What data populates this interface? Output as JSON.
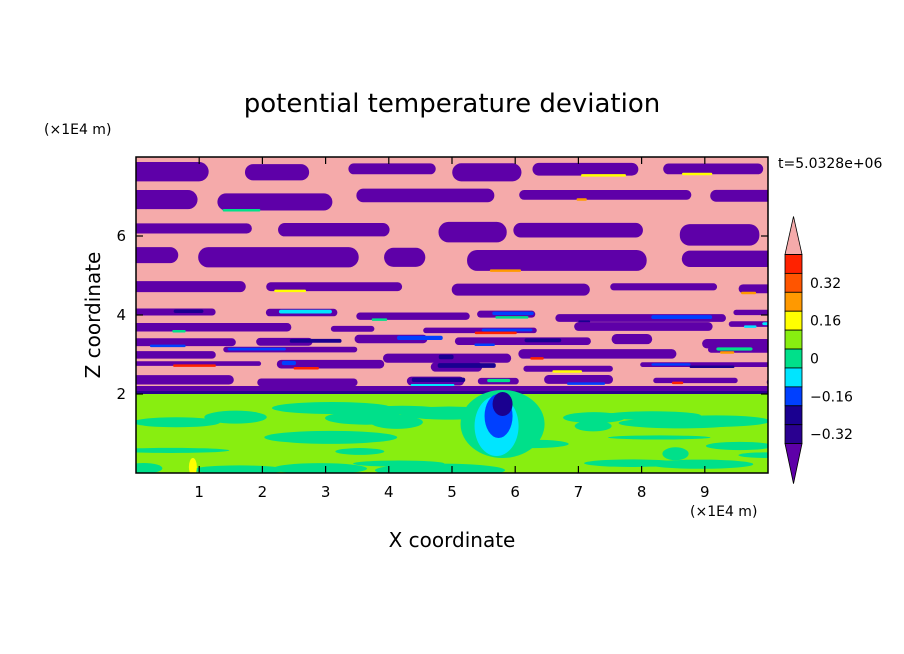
{
  "chart_data": {
    "type": "heatmap",
    "title": "potential temperature deviation",
    "xlabel": "X coordinate",
    "ylabel": "Z coordinate",
    "x_unit": "(×1E4 m)",
    "y_unit": "(×1E4 m)",
    "time_label": "t=5.0328e+06",
    "xlim": [
      0,
      10
    ],
    "ylim": [
      0,
      8
    ],
    "x_ticks": [
      "1",
      "2",
      "3",
      "4",
      "5",
      "6",
      "7",
      "8",
      "9"
    ],
    "y_ticks": [
      "2",
      "4",
      "6"
    ],
    "x_tick_values": [
      1,
      2,
      3,
      4,
      5,
      6,
      7,
      8,
      9
    ],
    "y_tick_values": [
      2,
      4,
      6
    ],
    "colorbar": {
      "levels": [
        -0.48,
        -0.4,
        -0.32,
        -0.24,
        -0.16,
        -0.08,
        0,
        0.08,
        0.16,
        0.24,
        0.32,
        0.4,
        0.48
      ],
      "colors": [
        "#5e00a8",
        "#1a0090",
        "#0040ff",
        "#00e5ff",
        "#00e08a",
        "#88ee10",
        "#ffff00",
        "#ff9900",
        "#ff2200",
        "#f5aaaa"
      ],
      "tick_labels": [
        "0.32",
        "0.16",
        "0",
        "−0.16",
        "−0.32"
      ],
      "tick_values": [
        0.32,
        0.16,
        0,
        -0.16,
        -0.32
      ],
      "extend": "both"
    },
    "field_description_regions": {
      "upper_layer_z_range": [
        2,
        8
      ],
      "lower_layer_z_range": [
        0,
        2
      ]
    }
  }
}
